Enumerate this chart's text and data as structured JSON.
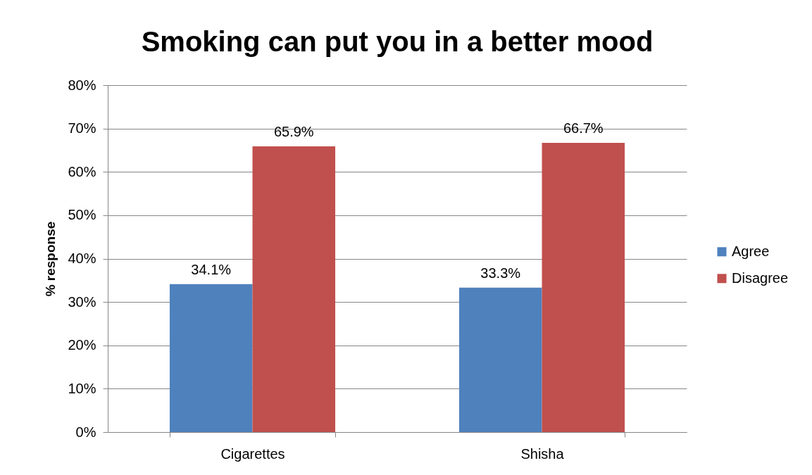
{
  "chart_data": {
    "type": "bar",
    "title": "Smoking can put you in a better mood",
    "ylabel": "% response",
    "categories": [
      "Cigarettes",
      "Shisha"
    ],
    "series": [
      {
        "name": "Agree",
        "color": "#4f81bd",
        "values": [
          34.1,
          33.3
        ],
        "value_labels": [
          "34.1%",
          "33.3%"
        ]
      },
      {
        "name": "Disagree",
        "color": "#c0504d",
        "values": [
          65.9,
          66.7
        ],
        "value_labels": [
          "65.9%",
          "66.7%"
        ]
      }
    ],
    "ylim": [
      0,
      80
    ],
    "yticks": [
      {
        "value": 0,
        "label": "0%"
      },
      {
        "value": 10,
        "label": "10%"
      },
      {
        "value": 20,
        "label": "20%"
      },
      {
        "value": 30,
        "label": "30%"
      },
      {
        "value": 40,
        "label": "40%"
      },
      {
        "value": 50,
        "label": "50%"
      },
      {
        "value": 60,
        "label": "60%"
      },
      {
        "value": 70,
        "label": "70%"
      },
      {
        "value": 80,
        "label": "80%"
      }
    ],
    "grid": "y",
    "legend": "right"
  }
}
